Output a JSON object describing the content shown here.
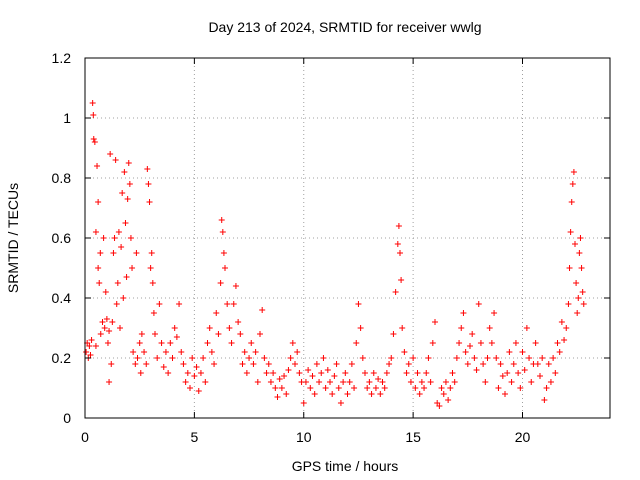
{
  "chart_data": {
    "type": "scatter",
    "title": "Day 213 of 2024, SRMTID for receiver wwlg",
    "xlabel": "GPS time / hours",
    "ylabel": "SRMTID / TECUs",
    "xlim": [
      0,
      24
    ],
    "ylim": [
      0,
      1.2
    ],
    "xticks": [
      0,
      5,
      10,
      15,
      20
    ],
    "xtick_labels": [
      "0",
      "5",
      "10",
      "15",
      "20"
    ],
    "yticks": [
      0,
      0.2,
      0.4,
      0.6,
      0.8,
      1.0,
      1.2
    ],
    "ytick_labels": [
      "0",
      "0.2",
      "0.4",
      "0.6",
      "0.8",
      "1",
      "1.2"
    ],
    "grid": true,
    "marker": "plus",
    "series": [
      {
        "name": "SRMTID",
        "color": "#ff0000",
        "points": [
          [
            0.05,
            0.22
          ],
          [
            0.1,
            0.25
          ],
          [
            0.15,
            0.2
          ],
          [
            0.2,
            0.24
          ],
          [
            0.25,
            0.21
          ],
          [
            0.3,
            0.26
          ],
          [
            0.35,
            1.05
          ],
          [
            0.38,
            1.01
          ],
          [
            0.4,
            0.93
          ],
          [
            0.45,
            0.92
          ],
          [
            0.5,
            0.24
          ],
          [
            0.5,
            0.62
          ],
          [
            0.55,
            0.84
          ],
          [
            0.6,
            0.5
          ],
          [
            0.6,
            0.72
          ],
          [
            0.65,
            0.45
          ],
          [
            0.7,
            0.55
          ],
          [
            0.72,
            0.28
          ],
          [
            0.8,
            0.32
          ],
          [
            0.85,
            0.6
          ],
          [
            0.9,
            0.3
          ],
          [
            0.95,
            0.42
          ],
          [
            1.0,
            0.33
          ],
          [
            1.05,
            0.25
          ],
          [
            1.1,
            0.12
          ],
          [
            1.1,
            0.29
          ],
          [
            1.15,
            0.88
          ],
          [
            1.2,
            0.18
          ],
          [
            1.25,
            0.32
          ],
          [
            1.3,
            0.55
          ],
          [
            1.35,
            0.6
          ],
          [
            1.4,
            0.86
          ],
          [
            1.45,
            0.38
          ],
          [
            1.5,
            0.45
          ],
          [
            1.55,
            0.62
          ],
          [
            1.6,
            0.3
          ],
          [
            1.65,
            0.57
          ],
          [
            1.7,
            0.75
          ],
          [
            1.75,
            0.4
          ],
          [
            1.8,
            0.82
          ],
          [
            1.85,
            0.65
          ],
          [
            1.9,
            0.47
          ],
          [
            1.95,
            0.73
          ],
          [
            2.0,
            0.85
          ],
          [
            2.05,
            0.78
          ],
          [
            2.1,
            0.6
          ],
          [
            2.15,
            0.5
          ],
          [
            2.2,
            0.22
          ],
          [
            2.3,
            0.18
          ],
          [
            2.35,
            0.55
          ],
          [
            2.4,
            0.2
          ],
          [
            2.5,
            0.25
          ],
          [
            2.55,
            0.15
          ],
          [
            2.6,
            0.28
          ],
          [
            2.7,
            0.22
          ],
          [
            2.8,
            0.18
          ],
          [
            2.85,
            0.83
          ],
          [
            2.9,
            0.78
          ],
          [
            2.95,
            0.72
          ],
          [
            3.0,
            0.5
          ],
          [
            3.05,
            0.55
          ],
          [
            3.1,
            0.45
          ],
          [
            3.15,
            0.35
          ],
          [
            3.2,
            0.28
          ],
          [
            3.3,
            0.2
          ],
          [
            3.4,
            0.38
          ],
          [
            3.5,
            0.25
          ],
          [
            3.6,
            0.17
          ],
          [
            3.7,
            0.22
          ],
          [
            3.8,
            0.15
          ],
          [
            3.9,
            0.25
          ],
          [
            4.0,
            0.2
          ],
          [
            4.1,
            0.3
          ],
          [
            4.2,
            0.27
          ],
          [
            4.3,
            0.38
          ],
          [
            4.4,
            0.22
          ],
          [
            4.5,
            0.18
          ],
          [
            4.6,
            0.12
          ],
          [
            4.7,
            0.15
          ],
          [
            4.8,
            0.1
          ],
          [
            4.9,
            0.2
          ],
          [
            5.0,
            0.14
          ],
          [
            5.1,
            0.17
          ],
          [
            5.2,
            0.09
          ],
          [
            5.3,
            0.15
          ],
          [
            5.4,
            0.2
          ],
          [
            5.5,
            0.12
          ],
          [
            5.6,
            0.25
          ],
          [
            5.7,
            0.3
          ],
          [
            5.8,
            0.22
          ],
          [
            5.9,
            0.18
          ],
          [
            6.0,
            0.35
          ],
          [
            6.1,
            0.28
          ],
          [
            6.2,
            0.45
          ],
          [
            6.25,
            0.66
          ],
          [
            6.3,
            0.62
          ],
          [
            6.35,
            0.55
          ],
          [
            6.4,
            0.5
          ],
          [
            6.5,
            0.38
          ],
          [
            6.6,
            0.3
          ],
          [
            6.7,
            0.25
          ],
          [
            6.8,
            0.38
          ],
          [
            6.9,
            0.44
          ],
          [
            7.0,
            0.32
          ],
          [
            7.1,
            0.28
          ],
          [
            7.2,
            0.18
          ],
          [
            7.3,
            0.22
          ],
          [
            7.4,
            0.15
          ],
          [
            7.5,
            0.2
          ],
          [
            7.6,
            0.25
          ],
          [
            7.7,
            0.18
          ],
          [
            7.8,
            0.22
          ],
          [
            7.9,
            0.12
          ],
          [
            8.0,
            0.28
          ],
          [
            8.1,
            0.36
          ],
          [
            8.2,
            0.2
          ],
          [
            8.3,
            0.15
          ],
          [
            8.4,
            0.18
          ],
          [
            8.5,
            0.12
          ],
          [
            8.6,
            0.15
          ],
          [
            8.7,
            0.1
          ],
          [
            8.8,
            0.07
          ],
          [
            8.9,
            0.13
          ],
          [
            9.0,
            0.1
          ],
          [
            9.1,
            0.14
          ],
          [
            9.2,
            0.08
          ],
          [
            9.3,
            0.16
          ],
          [
            9.4,
            0.2
          ],
          [
            9.5,
            0.25
          ],
          [
            9.6,
            0.18
          ],
          [
            9.7,
            0.22
          ],
          [
            9.8,
            0.15
          ],
          [
            9.9,
            0.12
          ],
          [
            10.0,
            0.05
          ],
          [
            10.1,
            0.12
          ],
          [
            10.2,
            0.16
          ],
          [
            10.3,
            0.1
          ],
          [
            10.4,
            0.14
          ],
          [
            10.5,
            0.08
          ],
          [
            10.6,
            0.18
          ],
          [
            10.7,
            0.12
          ],
          [
            10.8,
            0.15
          ],
          [
            10.9,
            0.2
          ],
          [
            11.0,
            0.1
          ],
          [
            11.1,
            0.16
          ],
          [
            11.2,
            0.12
          ],
          [
            11.3,
            0.08
          ],
          [
            11.4,
            0.14
          ],
          [
            11.5,
            0.18
          ],
          [
            11.6,
            0.1
          ],
          [
            11.7,
            0.05
          ],
          [
            11.8,
            0.12
          ],
          [
            11.9,
            0.15
          ],
          [
            12.0,
            0.08
          ],
          [
            12.1,
            0.12
          ],
          [
            12.2,
            0.18
          ],
          [
            12.3,
            0.1
          ],
          [
            12.4,
            0.25
          ],
          [
            12.5,
            0.38
          ],
          [
            12.6,
            0.3
          ],
          [
            12.7,
            0.2
          ],
          [
            12.8,
            0.15
          ],
          [
            12.9,
            0.1
          ],
          [
            13.0,
            0.12
          ],
          [
            13.1,
            0.08
          ],
          [
            13.2,
            0.15
          ],
          [
            13.3,
            0.1
          ],
          [
            13.4,
            0.13
          ],
          [
            13.5,
            0.08
          ],
          [
            13.6,
            0.12
          ],
          [
            13.7,
            0.1
          ],
          [
            13.8,
            0.15
          ],
          [
            13.9,
            0.18
          ],
          [
            14.0,
            0.2
          ],
          [
            14.1,
            0.28
          ],
          [
            14.2,
            0.42
          ],
          [
            14.3,
            0.58
          ],
          [
            14.35,
            0.64
          ],
          [
            14.4,
            0.55
          ],
          [
            14.45,
            0.46
          ],
          [
            14.5,
            0.3
          ],
          [
            14.6,
            0.22
          ],
          [
            14.7,
            0.15
          ],
          [
            14.8,
            0.18
          ],
          [
            14.9,
            0.12
          ],
          [
            15.0,
            0.2
          ],
          [
            15.1,
            0.1
          ],
          [
            15.2,
            0.15
          ],
          [
            15.3,
            0.08
          ],
          [
            15.4,
            0.12
          ],
          [
            15.5,
            0.1
          ],
          [
            15.6,
            0.15
          ],
          [
            15.7,
            0.2
          ],
          [
            15.8,
            0.12
          ],
          [
            15.9,
            0.25
          ],
          [
            16.0,
            0.32
          ],
          [
            16.1,
            0.05
          ],
          [
            16.2,
            0.04
          ],
          [
            16.3,
            0.1
          ],
          [
            16.4,
            0.08
          ],
          [
            16.5,
            0.12
          ],
          [
            16.6,
            0.06
          ],
          [
            16.7,
            0.1
          ],
          [
            16.8,
            0.15
          ],
          [
            16.9,
            0.12
          ],
          [
            17.0,
            0.2
          ],
          [
            17.1,
            0.25
          ],
          [
            17.2,
            0.3
          ],
          [
            17.3,
            0.35
          ],
          [
            17.4,
            0.22
          ],
          [
            17.5,
            0.18
          ],
          [
            17.6,
            0.24
          ],
          [
            17.7,
            0.28
          ],
          [
            17.8,
            0.2
          ],
          [
            17.9,
            0.16
          ],
          [
            18.0,
            0.38
          ],
          [
            18.1,
            0.25
          ],
          [
            18.2,
            0.18
          ],
          [
            18.3,
            0.12
          ],
          [
            18.4,
            0.2
          ],
          [
            18.5,
            0.3
          ],
          [
            18.6,
            0.25
          ],
          [
            18.7,
            0.35
          ],
          [
            18.8,
            0.2
          ],
          [
            18.9,
            0.1
          ],
          [
            19.0,
            0.18
          ],
          [
            19.1,
            0.14
          ],
          [
            19.2,
            0.08
          ],
          [
            19.3,
            0.15
          ],
          [
            19.4,
            0.22
          ],
          [
            19.5,
            0.12
          ],
          [
            19.6,
            0.18
          ],
          [
            19.7,
            0.25
          ],
          [
            19.8,
            0.15
          ],
          [
            19.9,
            0.1
          ],
          [
            20.0,
            0.22
          ],
          [
            20.1,
            0.16
          ],
          [
            20.2,
            0.3
          ],
          [
            20.3,
            0.2
          ],
          [
            20.4,
            0.12
          ],
          [
            20.5,
            0.18
          ],
          [
            20.6,
            0.25
          ],
          [
            20.7,
            0.18
          ],
          [
            20.8,
            0.14
          ],
          [
            20.9,
            0.2
          ],
          [
            21.0,
            0.06
          ],
          [
            21.1,
            0.1
          ],
          [
            21.2,
            0.18
          ],
          [
            21.3,
            0.12
          ],
          [
            21.4,
            0.2
          ],
          [
            21.5,
            0.15
          ],
          [
            21.6,
            0.25
          ],
          [
            21.7,
            0.22
          ],
          [
            21.8,
            0.32
          ],
          [
            21.9,
            0.26
          ],
          [
            22.0,
            0.3
          ],
          [
            22.1,
            0.38
          ],
          [
            22.15,
            0.5
          ],
          [
            22.2,
            0.62
          ],
          [
            22.25,
            0.72
          ],
          [
            22.3,
            0.78
          ],
          [
            22.35,
            0.82
          ],
          [
            22.4,
            0.58
          ],
          [
            22.45,
            0.45
          ],
          [
            22.5,
            0.35
          ],
          [
            22.55,
            0.4
          ],
          [
            22.6,
            0.55
          ],
          [
            22.65,
            0.6
          ],
          [
            22.7,
            0.5
          ],
          [
            22.75,
            0.42
          ],
          [
            22.8,
            0.38
          ]
        ]
      }
    ]
  }
}
